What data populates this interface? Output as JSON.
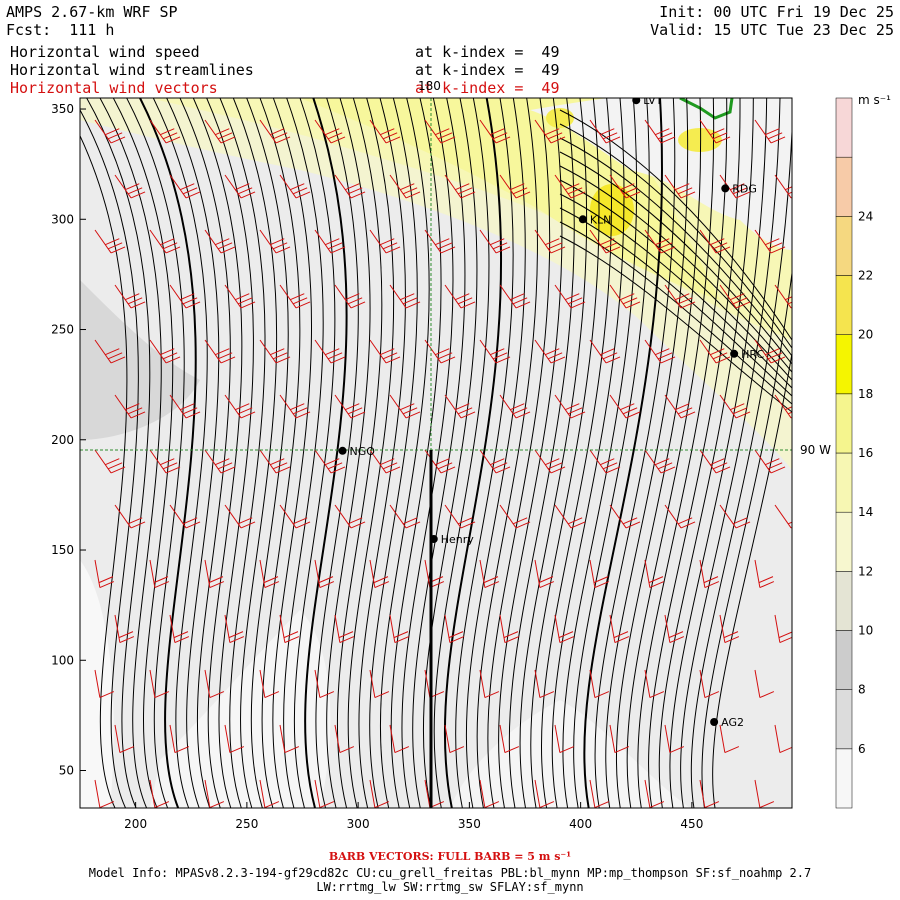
{
  "header": {
    "model": "AMPS 2.67-km WRF SP",
    "forecast": "Fcst:  111 h",
    "init": "Init: 00 UTC Fri 19 Dec 25",
    "valid": "Valid: 15 UTC Tue 23 Dec 25",
    "fields": [
      {
        "name": "Horizontal wind speed",
        "level": "at k-index =  49",
        "color": "#000000"
      },
      {
        "name": "Horizontal wind streamlines",
        "level": "at k-index =  49",
        "color": "#000000"
      },
      {
        "name": "Horizontal wind vectors",
        "level": "at k-index =  49",
        "color": "#d41010"
      }
    ]
  },
  "map": {
    "x_ticks": [
      "200",
      "250",
      "300",
      "350",
      "400",
      "450"
    ],
    "x_tick_values": [
      200,
      250,
      300,
      350,
      400,
      450
    ],
    "y_ticks": [
      "350",
      "300",
      "250",
      "200",
      "150",
      "100",
      "50"
    ],
    "y_tick_values": [
      350,
      300,
      250,
      200,
      150,
      100,
      50
    ],
    "x_range": [
      175,
      495
    ],
    "y_range": [
      33,
      355
    ],
    "meridian_label": "180",
    "parallel_label": "90 W",
    "stations": [
      {
        "id": "LVT",
        "x": 425,
        "y": 354
      },
      {
        "id": "RDG",
        "x": 465,
        "y": 314
      },
      {
        "id": "KLN",
        "x": 401,
        "y": 300
      },
      {
        "id": "HRC",
        "x": 469,
        "y": 239
      },
      {
        "id": "NGO",
        "x": 293,
        "y": 195
      },
      {
        "id": "Henry",
        "x": 334,
        "y": 155
      },
      {
        "id": "AG2",
        "x": 460,
        "y": 72
      }
    ],
    "colors": {
      "streamline": "#000000",
      "barb": "#d41010",
      "grid_line": "#2e8b2e",
      "coast": "#1f9a1f"
    }
  },
  "colorbar": {
    "units": "m s⁻¹",
    "levels": [
      {
        "label": "6",
        "color": "#f7f7f7"
      },
      {
        "label": "8",
        "color": "#dcdcdc"
      },
      {
        "label": "10",
        "color": "#cccccc"
      },
      {
        "label": "12",
        "color": "#e4e4d4"
      },
      {
        "label": "14",
        "color": "#f7f7cf"
      },
      {
        "label": "16",
        "color": "#f7f7b3"
      },
      {
        "label": "18",
        "color": "#f5f58e"
      },
      {
        "label": "20",
        "color": "#f5f500"
      },
      {
        "label": "22",
        "color": "#f5e44e"
      },
      {
        "label": "24",
        "color": "#f5d880"
      },
      {
        "label": "",
        "color": "#f7cba8"
      },
      {
        "label": "",
        "color": "#f7d7d7"
      }
    ]
  },
  "footer": {
    "barb_note": "BARB VECTORS:  FULL BARB = 5 m s⁻¹",
    "model_info": "Model Info: MPASv8.2.3-194-gf29cd82c CU:cu_grell_freitas PBL:bl_mynn MP:mp_thompson SF:sf_noahmp 2.7",
    "model_info_2": "LW:rrtmg_lw SW:rrtmg_sw SFLAY:sf_mynn"
  }
}
